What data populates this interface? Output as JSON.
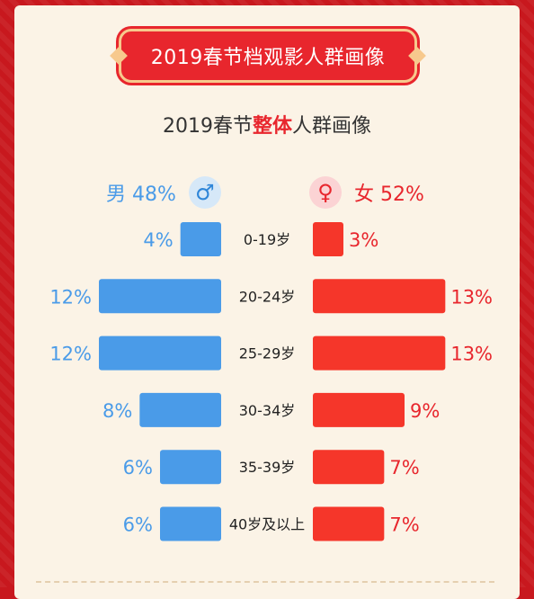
{
  "banner": {
    "title": "2019春节档观影人群画像"
  },
  "subtitle": {
    "prefix": "2019春节",
    "highlight": "整体",
    "suffix": "人群画像"
  },
  "legend": {
    "male_label": "男 48%",
    "female_label": "女 52%",
    "male_icon": "male-symbol-icon",
    "female_icon": "female-symbol-icon"
  },
  "colors": {
    "male": "#4a9be8",
    "female": "#f5362a",
    "accent": "#e8262d"
  },
  "chart_data": {
    "type": "bar",
    "orientation": "horizontal-butterfly",
    "categories": [
      "0-19岁",
      "20-24岁",
      "25-29岁",
      "30-34岁",
      "35-39岁",
      "40岁及以上"
    ],
    "series": [
      {
        "name": "男",
        "values": [
          4,
          12,
          12,
          8,
          6,
          6
        ]
      },
      {
        "name": "女",
        "values": [
          3,
          13,
          13,
          9,
          7,
          7
        ]
      }
    ],
    "value_labels": {
      "male": [
        "4%",
        "12%",
        "12%",
        "8%",
        "6%",
        "6%"
      ],
      "female": [
        "3%",
        "13%",
        "13%",
        "9%",
        "7%",
        "7%"
      ]
    },
    "unit": "%"
  }
}
